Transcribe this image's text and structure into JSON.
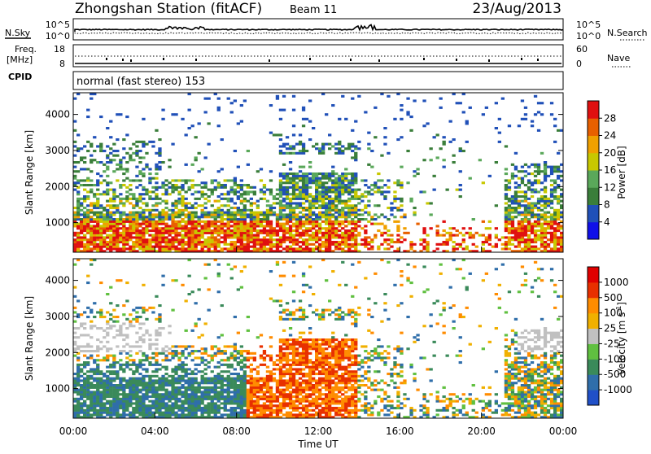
{
  "header": {
    "title": "Zhongshan Station (fitACF)",
    "beam": "Beam 11",
    "date": "23/Aug/2013"
  },
  "top_strip": {
    "left_label": "N.Sky",
    "right_label": "N.Search",
    "left_ticks": [
      "10^5",
      "10^0"
    ],
    "right_ticks": [
      "10^5",
      "10^0"
    ]
  },
  "freq_strip": {
    "left_label_1": "Freq.",
    "left_label_2": "[MHz]",
    "right_label": "Nave",
    "left_ticks": [
      "18",
      "8"
    ],
    "right_ticks": [
      "60",
      "0"
    ]
  },
  "cpid": {
    "label": "CPID",
    "text": "normal (fast stereo) 153"
  },
  "chart_data": [
    {
      "type": "heatmap",
      "ylabel": "Slant Range [km]",
      "ylim": [
        180,
        4600
      ],
      "yticks": [
        "1000",
        "2000",
        "3000",
        "4000"
      ],
      "colorbar": {
        "label": "Power [dB]",
        "ticks": [
          "4",
          "8",
          "12",
          "16",
          "20",
          "24",
          "28"
        ],
        "colors": [
          "#1010e8",
          "#2050b8",
          "#3a7e3a",
          "#5aa85a",
          "#c8c800",
          "#f0a000",
          "#e86000",
          "#e01010"
        ]
      }
    },
    {
      "type": "heatmap",
      "ylabel": "Velocity [m s^-1]",
      "ylim": [
        180,
        4600
      ],
      "yticks": [
        "1000",
        "2000",
        "3000",
        "4000"
      ],
      "colorbar": {
        "label": "Velocity [m s",
        "label_sup": "-1",
        "label_end": "]",
        "ticks": [
          "1000",
          "500",
          "100",
          "25",
          "-25",
          "-100",
          "-500",
          "-1000"
        ],
        "colors": [
          "#2050c8",
          "#2f6eaa",
          "#3a8a5a",
          "#60c040",
          "#c0c0c0",
          "#f0b000",
          "#ff8c00",
          "#e83000",
          "#e00000"
        ]
      }
    }
  ],
  "xaxis": {
    "label": "Time UT",
    "ticks": [
      "00:00",
      "04:00",
      "08:00",
      "12:00",
      "16:00",
      "20:00",
      "00:00"
    ]
  },
  "left_axis_label": "Slant Range [km]"
}
